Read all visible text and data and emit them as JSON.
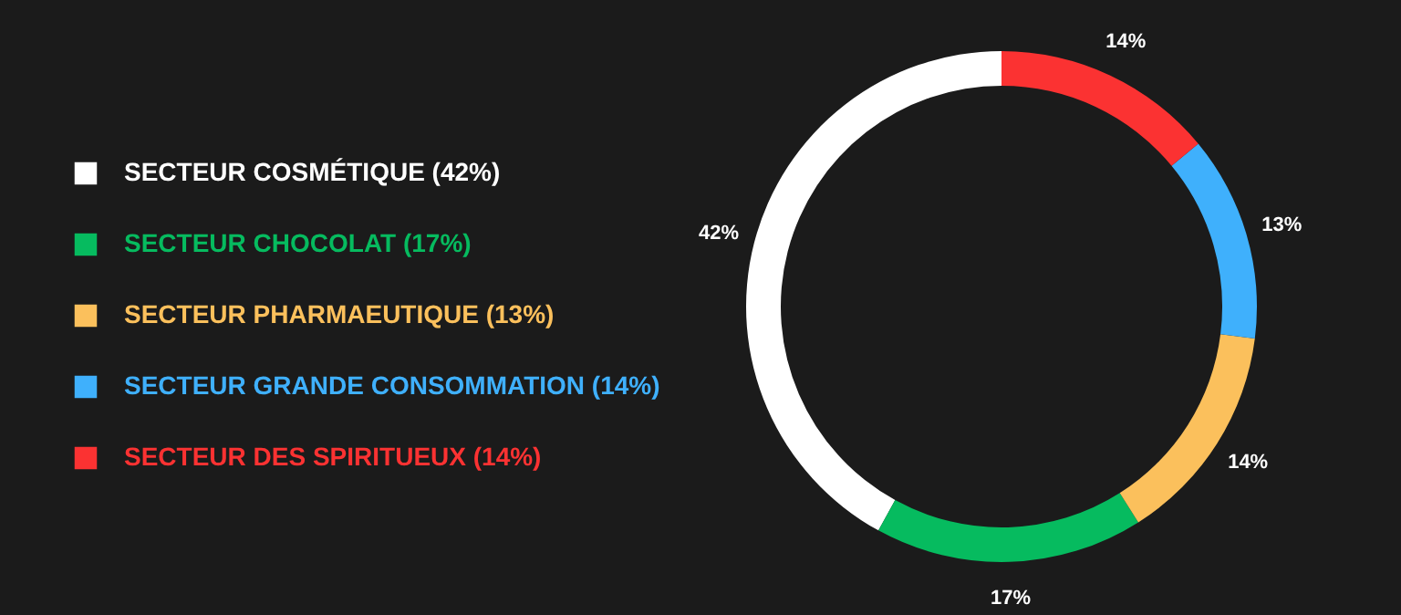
{
  "chart_data": {
    "type": "donut",
    "categories": [
      "SECTEUR COSMÉTIQUE (42%)",
      "SECTEUR CHOCOLAT (17%)",
      "SECTEUR PHARMAEUTIQUE (13%)",
      "SECTEUR GRANDE CONSOMMATION (14%)",
      "SECTEUR DES SPIRITUEUX (14%)"
    ],
    "values": [
      42,
      17,
      14,
      13,
      14
    ],
    "value_labels": [
      "42%",
      "17%",
      "14%",
      "13%",
      "14%"
    ],
    "colors": [
      "#ffffff",
      "#06bb5f",
      "#fbc05c",
      "#3fb0fc",
      "#fb3232"
    ],
    "legend": "left"
  }
}
